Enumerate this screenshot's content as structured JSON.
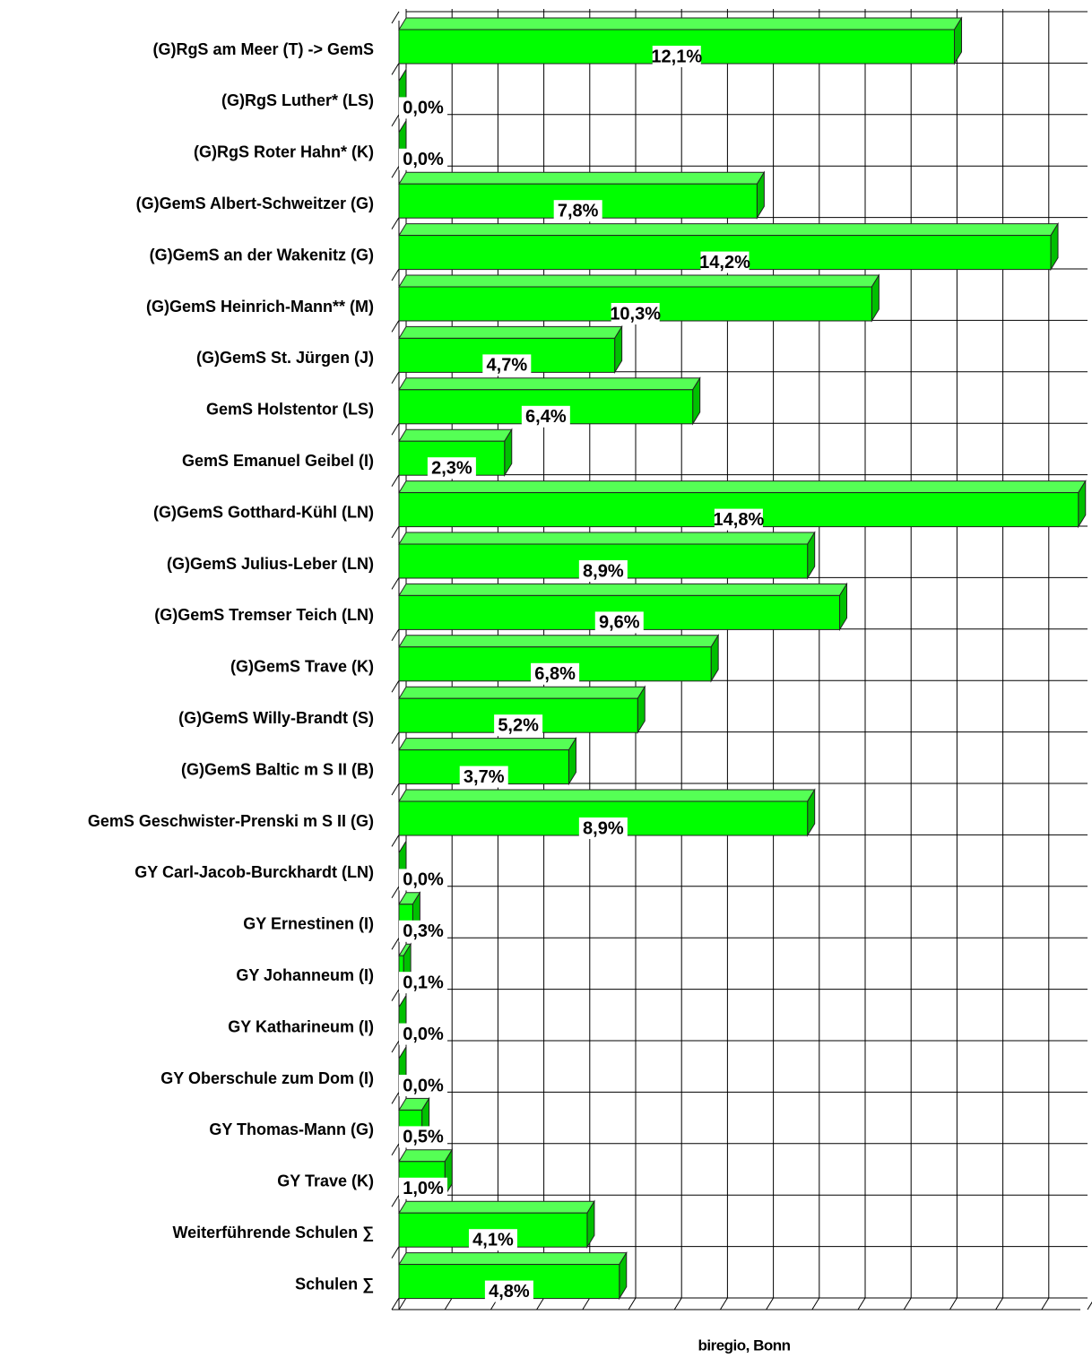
{
  "chart_data": {
    "type": "bar",
    "orientation": "horizontal",
    "three_d": true,
    "grid": true,
    "color": "#00ff00",
    "source": "biregio, Bonn",
    "categories": [
      "(G)RgS am Meer (T) -> GemS",
      "(G)RgS Luther* (LS)",
      "(G)RgS Roter Hahn* (K)",
      "(G)GemS Albert-Schweitzer (G)",
      "(G)GemS an der Wakenitz (G)",
      "(G)GemS Heinrich-Mann** (M)",
      "(G)GemS St. Jürgen (J)",
      "GemS Holstentor (LS)",
      "GemS Emanuel Geibel (I)",
      "(G)GemS Gotthard-Kühl (LN)",
      "(G)GemS Julius-Leber (LN)",
      "(G)GemS Tremser Teich (LN)",
      "(G)GemS Trave (K)",
      "(G)GemS Willy-Brandt (S)",
      "(G)GemS Baltic m S II (B)",
      "GemS Geschwister-Prenski m S II (G)",
      "GY Carl-Jacob-Burckhardt (LN)",
      "GY Ernestinen (I)",
      "GY Johanneum (I)",
      "GY Katharineum (I)",
      "GY Oberschule zum Dom (I)",
      "GY Thomas-Mann (G)",
      "GY Trave (K)",
      "Weiterführende Schulen ∑",
      "Schulen ∑"
    ],
    "values": [
      12.1,
      0.0,
      0.0,
      7.8,
      14.2,
      10.3,
      4.7,
      6.4,
      2.3,
      14.8,
      8.9,
      9.6,
      6.8,
      5.2,
      3.7,
      8.9,
      0.0,
      0.3,
      0.1,
      0.0,
      0.0,
      0.5,
      1.0,
      4.1,
      4.8
    ],
    "value_labels": [
      "12,1%",
      "0,0%",
      "0,0%",
      "7,8%",
      "14,2%",
      "10,3%",
      "4,7%",
      "6,4%",
      "2,3%",
      "14,8%",
      "8,9%",
      "9,6%",
      "6,8%",
      "5,2%",
      "3,7%",
      "8,9%",
      "0,0%",
      "0,3%",
      "0,1%",
      "0,0%",
      "0,0%",
      "0,5%",
      "1,0%",
      "4,1%",
      "4,8%"
    ],
    "xlim": [
      0,
      15
    ],
    "xticks": [
      0,
      1,
      2,
      3,
      4,
      5,
      6,
      7,
      8,
      9,
      10,
      11,
      12,
      13,
      14,
      15
    ]
  }
}
